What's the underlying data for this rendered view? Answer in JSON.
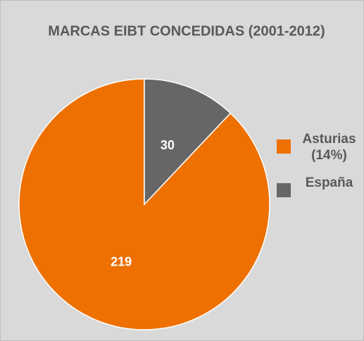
{
  "chart_data": {
    "type": "pie",
    "title": "MARCAS EIBT CONCEDIDAS (2001-2012)",
    "categories": [
      "Asturias (14%)",
      "España"
    ],
    "values": [
      219,
      30
    ],
    "colors": [
      "#ED7000",
      "#666666"
    ],
    "legend": "right"
  }
}
